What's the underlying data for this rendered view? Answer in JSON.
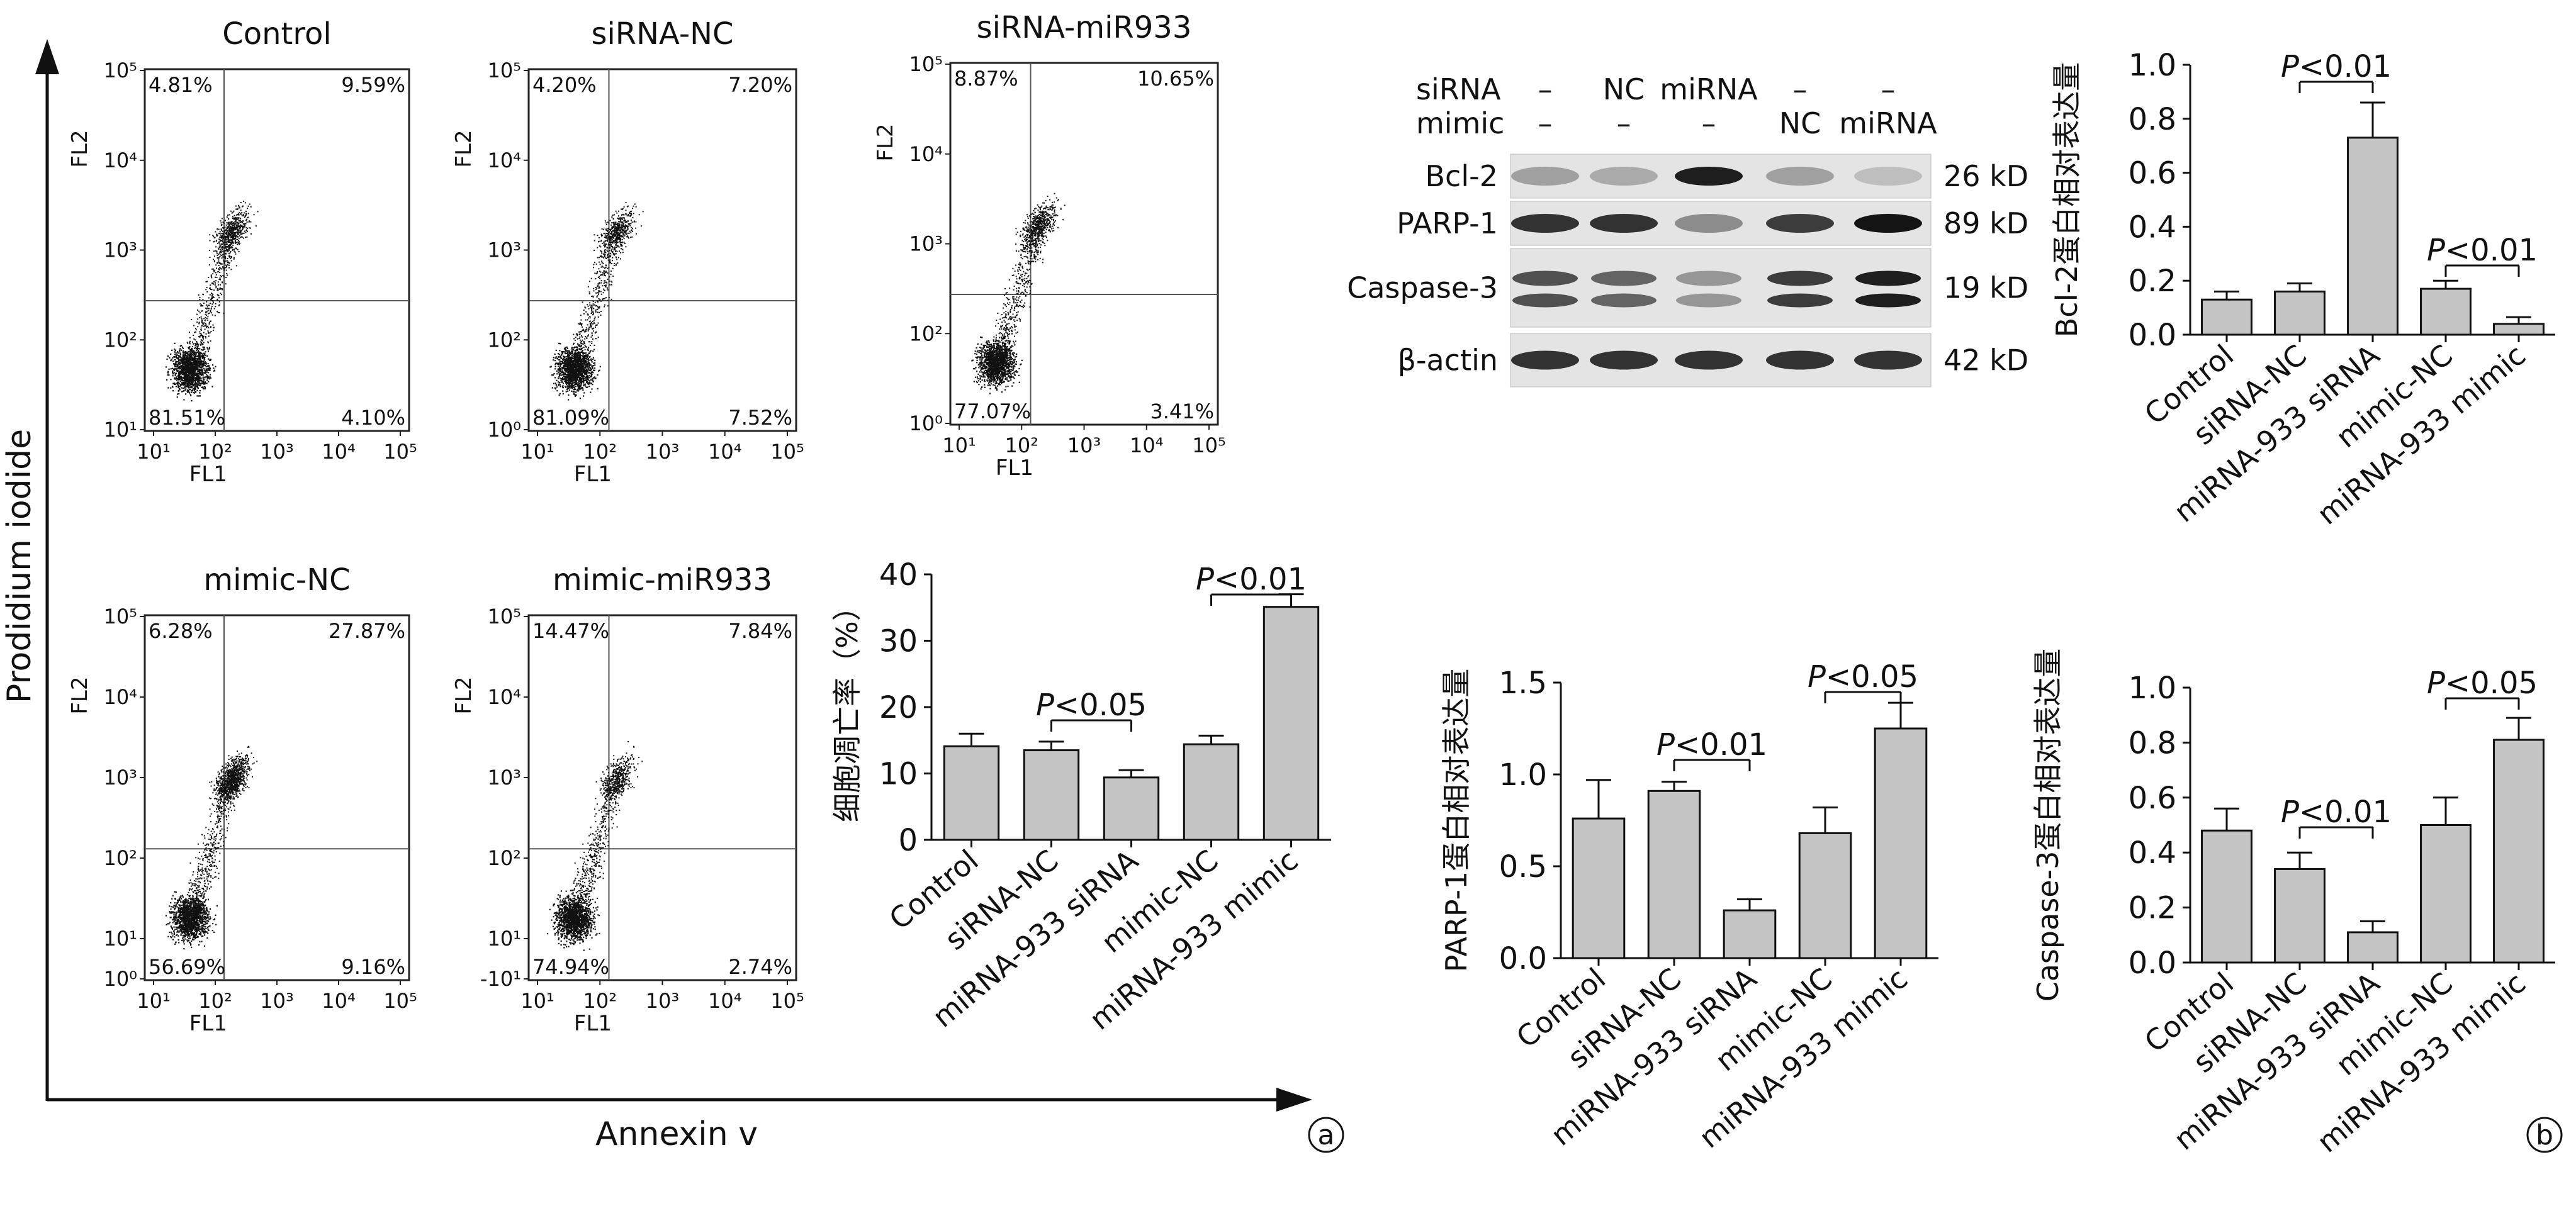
{
  "panel_labels": [
    "a",
    "b"
  ],
  "big_axes": {
    "x_label": "Annexin v",
    "y_label": "Prodidium iodide"
  },
  "flow_plots": [
    {
      "title": "Control",
      "x_label": "FL1",
      "y_label": "FL2",
      "q_ul": "4.81%",
      "q_ur": "9.59%",
      "q_ll": "81.51%",
      "q_lr": "4.10%",
      "y_ticks": [
        "10¹",
        "10²",
        "10³",
        "10⁴",
        "10⁵"
      ],
      "x_ticks": [
        "10¹",
        "10²",
        "10³",
        "10⁴",
        "10⁵"
      ]
    },
    {
      "title": "siRNA-NC",
      "x_label": "FL1",
      "y_label": "FL2",
      "q_ul": "4.20%",
      "q_ur": "7.20%",
      "q_ll": "81.09%",
      "q_lr": "7.52%",
      "y_ticks": [
        "10⁰",
        "10²",
        "10³",
        "10⁴",
        "10⁵"
      ],
      "x_ticks": [
        "10¹",
        "10²",
        "10³",
        "10⁴",
        "10⁵"
      ]
    },
    {
      "title": "siRNA-miR933",
      "x_label": "FL1",
      "y_label": "FL2",
      "q_ul": "8.87%",
      "q_ur": "10.65%",
      "q_ll": "77.07%",
      "q_lr": "3.41%",
      "y_ticks": [
        "10⁰",
        "10²",
        "10³",
        "10⁴",
        "10⁵"
      ],
      "x_ticks": [
        "10¹",
        "10²",
        "10³",
        "10⁴",
        "10⁵"
      ]
    },
    {
      "title": "mimic-NC",
      "x_label": "FL1",
      "y_label": "FL2",
      "q_ul": "6.28%",
      "q_ur": "27.87%",
      "q_ll": "56.69%",
      "q_lr": "9.16%",
      "y_ticks": [
        "10⁰",
        "10¹",
        "10²",
        "10³",
        "10⁴",
        "10⁵"
      ],
      "x_ticks": [
        "10¹",
        "10²",
        "10³",
        "10⁴",
        "10⁵"
      ]
    },
    {
      "title": "mimic-miR933",
      "x_label": "FL1",
      "y_label": "FL2",
      "q_ul": "14.47%",
      "q_ur": "7.84%",
      "q_ll": "74.94%",
      "q_lr": "2.74%",
      "y_ticks": [
        "-10¹",
        "10¹",
        "10²",
        "10³",
        "10⁴",
        "10⁵"
      ],
      "x_ticks": [
        "10¹",
        "10²",
        "10³",
        "10⁴",
        "10⁵"
      ]
    }
  ],
  "western_blot": {
    "siRNA_row_label": "siRNA",
    "mimic_row_label": "mimic",
    "siRNA_values": [
      "–",
      "NC",
      "miRNA",
      "–",
      "–"
    ],
    "mimic_values": [
      "–",
      "–",
      "–",
      "NC",
      "miRNA"
    ],
    "bands": [
      {
        "name": "Bcl-2",
        "size": "26 kD",
        "intensity": [
          0.3,
          0.25,
          0.95,
          0.3,
          0.15
        ]
      },
      {
        "name": "PARP-1",
        "size": "89 kD",
        "intensity": [
          0.85,
          0.85,
          0.4,
          0.8,
          1.0
        ]
      },
      {
        "name": "Caspase-3",
        "size": "19 kD",
        "intensity": [
          0.7,
          0.6,
          0.35,
          0.8,
          0.95
        ]
      },
      {
        "name": "β-actin",
        "size": "42 kD",
        "intensity": [
          0.85,
          0.85,
          0.85,
          0.85,
          0.85
        ]
      }
    ]
  },
  "chart_data": [
    {
      "type": "bar",
      "ylabel": "细胞凋亡率（%）",
      "categories": [
        "Control",
        "siRNA-NC",
        "miRNA-933 siRNA",
        "mimic-NC",
        "miRNA-933 mimic"
      ],
      "values": [
        14.1,
        13.5,
        9.4,
        14.4,
        35.1
      ],
      "errors": [
        1.9,
        1.3,
        1.1,
        1.3,
        1.9
      ],
      "ylim": [
        0,
        40
      ],
      "yticks": [
        "0",
        "10",
        "20",
        "30",
        "40"
      ],
      "annotations": [
        {
          "italic": "P",
          "text": "<0.05",
          "from": 1,
          "to": 2
        },
        {
          "italic": "P",
          "text": "<0.01",
          "from": 3,
          "to": 4
        }
      ]
    },
    {
      "type": "bar",
      "ylabel": "Bcl-2蛋白相对表达量",
      "categories": [
        "Control",
        "siRNA-NC",
        "miRNA-933 siRNA",
        "mimic-NC",
        "miRNA-933 mimic"
      ],
      "values": [
        0.13,
        0.16,
        0.73,
        0.17,
        0.04
      ],
      "errors": [
        0.03,
        0.03,
        0.13,
        0.03,
        0.025
      ],
      "ylim": [
        0,
        1.0
      ],
      "yticks": [
        "0.0",
        "0.2",
        "0.4",
        "0.6",
        "0.8",
        "1.0"
      ],
      "annotations": [
        {
          "italic": "P",
          "text": "<0.01",
          "from": 1,
          "to": 2
        },
        {
          "italic": "P",
          "text": "<0.01",
          "from": 3,
          "to": 4
        }
      ]
    },
    {
      "type": "bar",
      "ylabel": "PARP-1蛋白相对表达量",
      "categories": [
        "Control",
        "siRNA-NC",
        "miRNA-933 siRNA",
        "mimic-NC",
        "miRNA-933 mimic"
      ],
      "values": [
        0.76,
        0.91,
        0.26,
        0.68,
        1.25
      ],
      "errors": [
        0.21,
        0.05,
        0.06,
        0.14,
        0.14
      ],
      "ylim": [
        0,
        1.5
      ],
      "yticks": [
        "0.0",
        "0.5",
        "1.0",
        "1.5"
      ],
      "annotations": [
        {
          "italic": "P",
          "text": "<0.01",
          "from": 1,
          "to": 2
        },
        {
          "italic": "P",
          "text": "<0.05",
          "from": 3,
          "to": 4
        }
      ]
    },
    {
      "type": "bar",
      "ylabel": "Caspase-3蛋白相对表达量",
      "categories": [
        "Control",
        "siRNA-NC",
        "miRNA-933 siRNA",
        "mimic-NC",
        "miRNA-933 mimic"
      ],
      "values": [
        0.48,
        0.34,
        0.11,
        0.5,
        0.81
      ],
      "errors": [
        0.08,
        0.06,
        0.04,
        0.1,
        0.08
      ],
      "ylim": [
        0,
        1.0
      ],
      "yticks": [
        "0.0",
        "0.2",
        "0.4",
        "0.6",
        "0.8",
        "1.0"
      ],
      "annotations": [
        {
          "italic": "P",
          "text": "<0.01",
          "from": 1,
          "to": 2
        },
        {
          "italic": "P",
          "text": "<0.05",
          "from": 3,
          "to": 4
        }
      ]
    }
  ]
}
